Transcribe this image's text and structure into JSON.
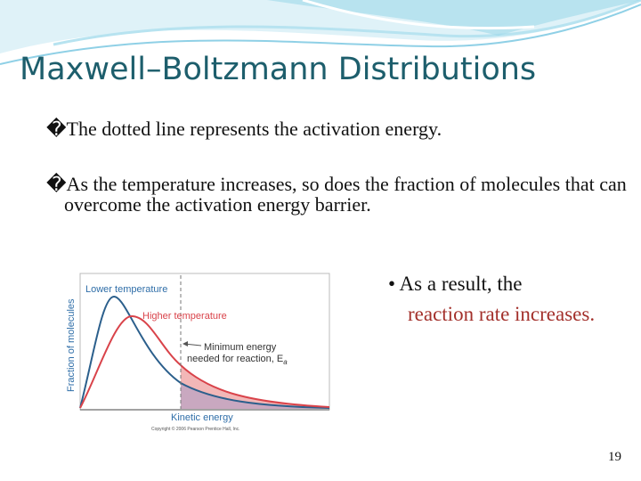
{
  "title": "Maxwell–Boltzmann Distributions",
  "bullets": [
    "�The dotted line represents the activation energy.",
    "�As the temperature increases, so does the fraction of molecules that can overcome the activation energy barrier."
  ],
  "figure": {
    "lower_label": "Lower temperature",
    "higher_label": "Higher temperature",
    "min_energy_line1": "Minimum energy",
    "min_energy_line2": "needed for reaction, E",
    "min_energy_sub": "a",
    "x_label": "Kinetic energy",
    "y_label": "Fraction of molecules",
    "copyright": "Copyright © 2006 Pearson Prentice Hall, Inc."
  },
  "side_note": {
    "lead": "As a result, the",
    "highlight": "reaction rate increases."
  },
  "page_number": "19"
}
